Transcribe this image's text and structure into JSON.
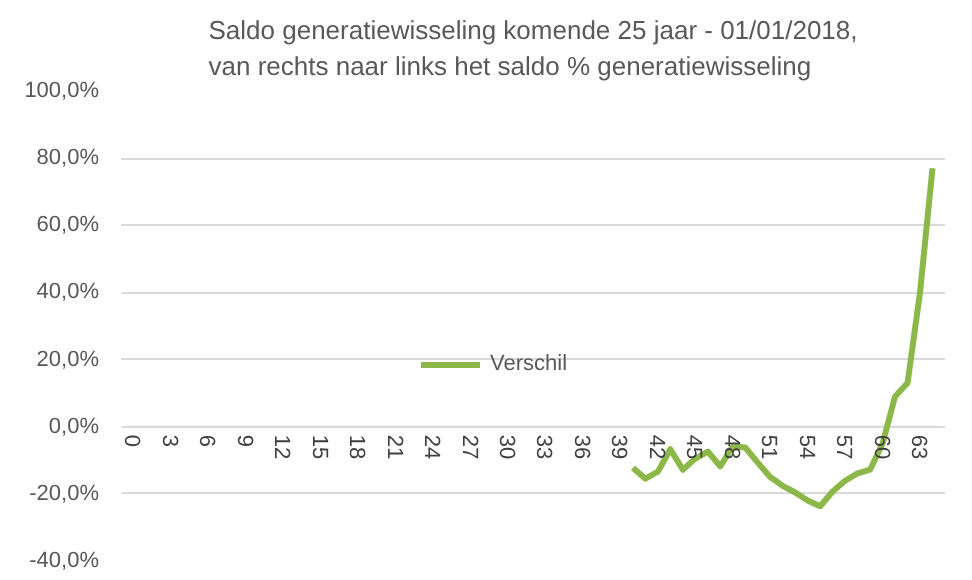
{
  "chart_data": {
    "type": "line",
    "title": "Saldo generatiewisseling komende 25 jaar - 01/01/2018,\nvan rechts naar links  het saldo % generatiewisseling",
    "categories": [
      "0",
      null,
      null,
      "3",
      null,
      null,
      "6",
      null,
      null,
      "9",
      null,
      null,
      "12",
      null,
      null,
      "15",
      null,
      null,
      "18",
      null,
      null,
      "21",
      null,
      null,
      "24",
      null,
      null,
      "27",
      null,
      null,
      "30",
      null,
      null,
      "33",
      null,
      null,
      "36",
      null,
      null,
      "39",
      null,
      null,
      "42",
      null,
      null,
      "45",
      null,
      null,
      "48",
      null,
      null,
      "51",
      null,
      null,
      "54",
      null,
      null,
      "57",
      null,
      null,
      "60",
      null,
      null,
      "63",
      null
    ],
    "series": [
      {
        "name": "Verschil",
        "color": "#8cb849",
        "values": [
          null,
          null,
          null,
          null,
          null,
          null,
          null,
          null,
          null,
          null,
          null,
          null,
          null,
          null,
          null,
          null,
          null,
          null,
          null,
          null,
          null,
          null,
          null,
          null,
          null,
          null,
          null,
          null,
          null,
          null,
          null,
          null,
          null,
          null,
          null,
          null,
          null,
          null,
          null,
          null,
          -12.2,
          -15.5,
          -13.4,
          -6.7,
          -12.8,
          -9.5,
          -7.4,
          -11.8,
          -5.9,
          -6.2,
          -10.7,
          -15.0,
          -17.6,
          -19.6,
          -22.0,
          -23.7,
          -19.3,
          -16.1,
          -13.9,
          -12.8,
          -5,
          9,
          13,
          40,
          77
        ]
      }
    ],
    "ylim": [
      -40,
      100
    ],
    "yticks": [
      {
        "value": -40,
        "label": "-40,0%"
      },
      {
        "value": -20,
        "label": "-20,0%"
      },
      {
        "value": 0,
        "label": "0,0%"
      },
      {
        "value": 20,
        "label": "20,0%"
      },
      {
        "value": 40,
        "label": "40,0%"
      },
      {
        "value": 60,
        "label": "60,0%"
      },
      {
        "value": 80,
        "label": "80,0%"
      },
      {
        "value": 100,
        "label": "100,0%"
      }
    ],
    "grid": "y",
    "legend": "center",
    "marker": "none",
    "line_style": "solid"
  }
}
